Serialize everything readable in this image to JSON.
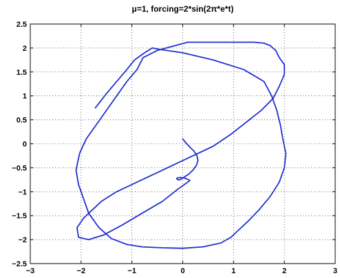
{
  "chart_data": {
    "type": "line",
    "title": "μ=1, forcing=2*sin(2π*e*t)",
    "xlabel": "",
    "ylabel": "",
    "xlim": [
      -3,
      3
    ],
    "ylim": [
      -2.5,
      2.5
    ],
    "x_ticks": [
      -3,
      -2,
      -1,
      0,
      1,
      2,
      3
    ],
    "x_tick_labels": [
      "−3",
      "−2",
      "−1",
      "0",
      "1",
      "2",
      "3"
    ],
    "y_ticks": [
      -2.5,
      -2,
      -1.5,
      -1,
      -0.5,
      0,
      0.5,
      1,
      1.5,
      2,
      2.5
    ],
    "y_tick_labels": [
      "−2.5",
      "−2",
      "−1.5",
      "−1",
      "−0.5",
      "0",
      "0.5",
      "1",
      "1.5",
      "2",
      "2.5"
    ],
    "grid": true,
    "grid_style": "dotted",
    "box": true,
    "line_color": "#1f2fd0",
    "series": [
      {
        "x": [
          0.0,
          0.08,
          0.15,
          0.22,
          0.28,
          0.3,
          0.27,
          0.2,
          0.12,
          0.02,
          -0.05,
          -0.1,
          -0.12,
          -0.05,
          0.05,
          0.12,
          0.14,
          0.1,
          -0.1,
          -0.4,
          -0.8,
          -1.2,
          -1.55,
          -1.85,
          -2.05,
          -2.08,
          -1.95,
          -1.8,
          -1.6,
          -1.3,
          -0.9,
          -0.4,
          0.1,
          0.6,
          0.95,
          1.25,
          1.55,
          1.78,
          1.9,
          2.0,
          2.0,
          1.9,
          1.83,
          1.72,
          1.6,
          1.4,
          1.25,
          0.9,
          0.5,
          0.1,
          -0.5,
          -0.78,
          -0.9,
          -1.1,
          -1.3,
          -1.5,
          -1.7,
          -1.9,
          -2.03,
          -2.1,
          -2.05,
          -1.95,
          -1.85,
          -1.65,
          -1.4,
          -1.1,
          -0.8,
          -0.4,
          0.0,
          0.4,
          0.75,
          0.95,
          1.1,
          1.3,
          1.5,
          1.72,
          1.9,
          2.0,
          2.03,
          1.97,
          1.92,
          1.85,
          1.75,
          1.6,
          1.2,
          0.6,
          0.0,
          -0.45,
          -0.6,
          -0.75,
          -0.95,
          -1.1,
          -1.3,
          -1.5,
          -1.72
        ],
        "y": [
          0.1,
          0.0,
          -0.08,
          -0.15,
          -0.25,
          -0.35,
          -0.45,
          -0.55,
          -0.63,
          -0.7,
          -0.75,
          -0.75,
          -0.72,
          -0.7,
          -0.72,
          -0.75,
          -0.77,
          -0.8,
          -0.95,
          -1.2,
          -1.45,
          -1.7,
          -1.9,
          -2.0,
          -1.95,
          -1.75,
          -1.55,
          -1.4,
          -1.2,
          -1.0,
          -0.8,
          -0.55,
          -0.3,
          -0.05,
          0.2,
          0.45,
          0.7,
          0.95,
          1.2,
          1.45,
          1.65,
          1.8,
          1.95,
          2.05,
          2.1,
          2.12,
          2.12,
          2.12,
          2.12,
          2.12,
          1.95,
          1.8,
          1.55,
          1.3,
          1.0,
          0.7,
          0.4,
          0.1,
          -0.2,
          -0.55,
          -0.85,
          -1.15,
          -1.45,
          -1.75,
          -1.98,
          -2.1,
          -2.15,
          -2.17,
          -2.18,
          -2.15,
          -2.07,
          -1.95,
          -1.8,
          -1.6,
          -1.38,
          -1.1,
          -0.8,
          -0.5,
          -0.2,
          0.1,
          0.4,
          0.7,
          1.0,
          1.3,
          1.55,
          1.75,
          1.9,
          1.97,
          2.0,
          1.9,
          1.75,
          1.55,
          1.3,
          1.05,
          0.75
        ]
      }
    ]
  }
}
